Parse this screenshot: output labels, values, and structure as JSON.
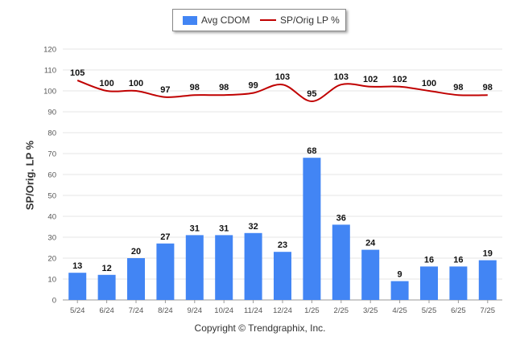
{
  "chart_data": {
    "type": "bar",
    "categories": [
      "5/24",
      "6/24",
      "7/24",
      "8/24",
      "9/24",
      "10/24",
      "11/24",
      "12/24",
      "1/25",
      "2/25",
      "3/25",
      "4/25",
      "5/25",
      "6/25",
      "7/25"
    ],
    "series": [
      {
        "name": "Avg CDOM",
        "type": "bar",
        "color": "#4285f4",
        "values": [
          13,
          12,
          20,
          27,
          31,
          31,
          32,
          23,
          68,
          36,
          24,
          9,
          16,
          16,
          19
        ]
      },
      {
        "name": "SP/Orig LP %",
        "type": "line",
        "color": "#c00000",
        "values": [
          105,
          100,
          100,
          97,
          98,
          98,
          99,
          103,
          95,
          103,
          102,
          102,
          100,
          98,
          98
        ]
      }
    ],
    "ylabel": "SP/Orig. LP %",
    "ylim": [
      0,
      120
    ],
    "yticks": [
      0,
      10,
      20,
      30,
      40,
      50,
      60,
      70,
      80,
      90,
      100,
      110,
      120
    ],
    "grid": true,
    "legend": "top-center"
  },
  "legend": {
    "bar_label": "Avg CDOM",
    "line_label": "SP/Orig LP %"
  },
  "footer": {
    "copyright": "Copyright © Trendgraphix, Inc."
  }
}
